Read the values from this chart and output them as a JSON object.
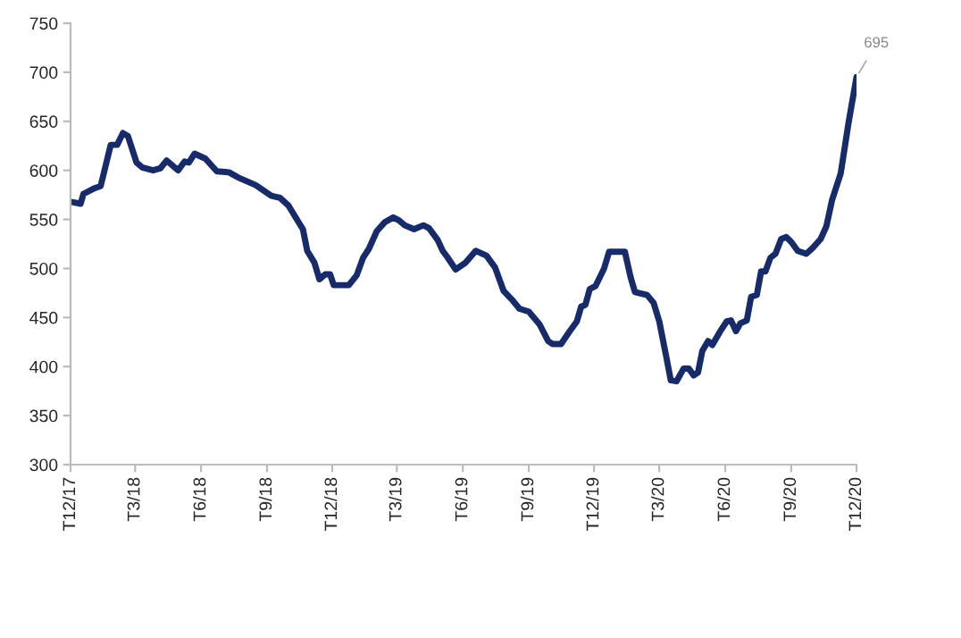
{
  "chart_data": {
    "type": "line",
    "x": [
      "2017-12-01",
      "2017-12-15",
      "2017-12-19",
      "2018-01-04",
      "2018-01-12",
      "2018-01-26",
      "2018-02-04",
      "2018-02-12",
      "2018-02-19",
      "2018-03-03",
      "2018-03-11",
      "2018-03-26",
      "2018-04-05",
      "2018-04-14",
      "2018-04-30",
      "2018-05-09",
      "2018-05-15",
      "2018-05-23",
      "2018-06-07",
      "2018-06-23",
      "2018-07-10",
      "2018-07-22",
      "2018-08-16",
      "2018-09-07",
      "2018-09-19",
      "2018-10-01",
      "2018-10-16",
      "2018-10-21",
      "2018-10-27",
      "2018-11-06",
      "2018-11-13",
      "2018-11-21",
      "2018-11-28",
      "2018-12-03",
      "2018-12-24",
      "2019-01-04",
      "2019-01-13",
      "2019-01-21",
      "2019-02-01",
      "2019-02-12",
      "2019-02-24",
      "2019-03-04",
      "2019-03-12",
      "2019-03-25",
      "2019-04-07",
      "2019-04-15",
      "2019-04-27",
      "2019-05-04",
      "2019-05-10",
      "2019-05-22",
      "2019-06-05",
      "2019-06-19",
      "2019-07-04",
      "2019-07-16",
      "2019-07-28",
      "2019-08-10",
      "2019-08-19",
      "2019-09-01",
      "2019-09-16",
      "2019-09-28",
      "2019-10-04",
      "2019-10-16",
      "2019-10-28",
      "2019-11-07",
      "2019-11-13",
      "2019-11-19",
      "2019-11-25",
      "2019-12-03",
      "2019-12-15",
      "2019-12-22",
      "2020-01-13",
      "2020-01-21",
      "2020-01-27",
      "2020-02-13",
      "2020-02-22",
      "2020-03-01",
      "2020-03-11",
      "2020-03-17",
      "2020-03-25",
      "2020-04-04",
      "2020-04-11",
      "2020-04-18",
      "2020-04-24",
      "2020-04-30",
      "2020-05-08",
      "2020-05-14",
      "2020-05-25",
      "2020-06-03",
      "2020-06-09",
      "2020-06-16",
      "2020-06-22",
      "2020-07-01",
      "2020-07-07",
      "2020-07-15",
      "2020-07-21",
      "2020-07-27",
      "2020-08-03",
      "2020-08-10",
      "2020-08-18",
      "2020-08-25",
      "2020-09-01",
      "2020-09-10",
      "2020-09-22",
      "2020-10-01",
      "2020-10-12",
      "2020-10-20",
      "2020-10-28",
      "2020-11-09",
      "2020-11-20",
      "2020-12-01"
    ],
    "series": [
      {
        "color": "#172b6b",
        "values": [
          568,
          566,
          576,
          582,
          584,
          626,
          626,
          638,
          635,
          608,
          603,
          600,
          602,
          610,
          600,
          609,
          608,
          617,
          612,
          599,
          598,
          593,
          585,
          574,
          572,
          564,
          546,
          540,
          518,
          506,
          489,
          494,
          494,
          483,
          483,
          493,
          511,
          520,
          538,
          547,
          552,
          549,
          544,
          540,
          544,
          541,
          529,
          518,
          512,
          499,
          506,
          518,
          513,
          501,
          477,
          467,
          459,
          456,
          443,
          426,
          423,
          423,
          436,
          446,
          461,
          463,
          479,
          482,
          500,
          517,
          517,
          491,
          476,
          473,
          465,
          446,
          409,
          386,
          385,
          398,
          398,
          391,
          394,
          416,
          426,
          422,
          436,
          446,
          447,
          436,
          444,
          447,
          471,
          473,
          497,
          497,
          511,
          515,
          530,
          532,
          527,
          518,
          515,
          521,
          530,
          543,
          570,
          597,
          649,
          695
        ]
      }
    ],
    "xlim": [
      "2017-12",
      "2020-12"
    ],
    "xticks": [
      {
        "value": "2017-12",
        "label": "T12/17"
      },
      {
        "value": "2018-03",
        "label": "T3/18"
      },
      {
        "value": "2018-06",
        "label": "T6/18"
      },
      {
        "value": "2018-09",
        "label": "T9/18"
      },
      {
        "value": "2018-12",
        "label": "T12/18"
      },
      {
        "value": "2019-03",
        "label": "T3/19"
      },
      {
        "value": "2019-06",
        "label": "T6/19"
      },
      {
        "value": "2019-09",
        "label": "T9/19"
      },
      {
        "value": "2019-12",
        "label": "T12/19"
      },
      {
        "value": "2020-03",
        "label": "T3/20"
      },
      {
        "value": "2020-06",
        "label": "T6/20"
      },
      {
        "value": "2020-09",
        "label": "T9/20"
      },
      {
        "value": "2020-12",
        "label": "T12/20"
      }
    ],
    "ylim": [
      300,
      750
    ],
    "yticks": [
      300,
      350,
      400,
      450,
      500,
      550,
      600,
      650,
      700,
      750
    ],
    "annotations": [
      {
        "text": "695",
        "x": "2020-12",
        "y": 695
      }
    ],
    "grid": false,
    "legend": false,
    "marker": "none",
    "line_style": "solid"
  }
}
